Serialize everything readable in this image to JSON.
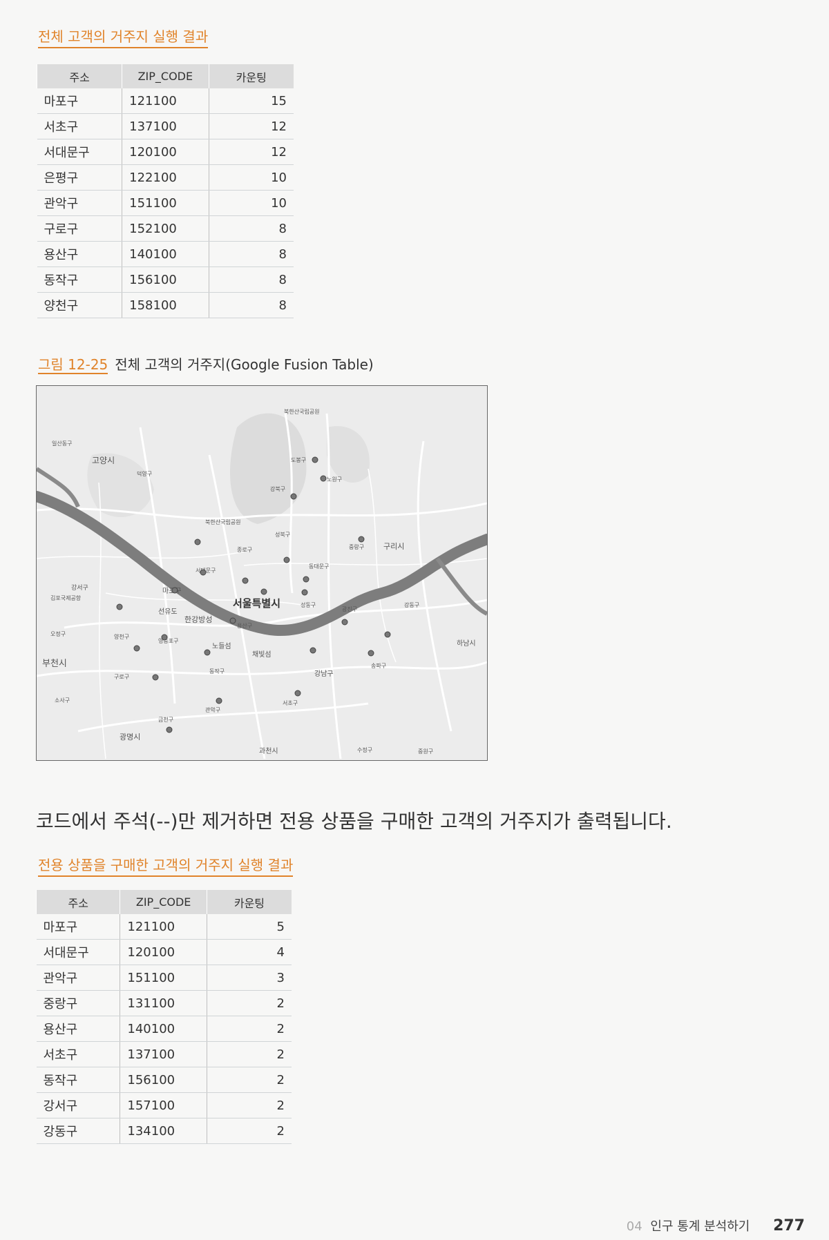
{
  "table1": {
    "title": "전체 고객의 거주지 실행 결과",
    "headers": [
      "주소",
      "ZIP_CODE",
      "카운팅"
    ],
    "rows": [
      [
        "마포구",
        "121100",
        "15"
      ],
      [
        "서초구",
        "137100",
        "12"
      ],
      [
        "서대문구",
        "120100",
        "12"
      ],
      [
        "은평구",
        "122100",
        "10"
      ],
      [
        "관악구",
        "151100",
        "10"
      ],
      [
        "구로구",
        "152100",
        "8"
      ],
      [
        "용산구",
        "140100",
        "8"
      ],
      [
        "동작구",
        "156100",
        "8"
      ],
      [
        "양천구",
        "158100",
        "8"
      ]
    ]
  },
  "figure": {
    "number": "그림 12-25",
    "caption": "전체 고객의 거주지(Google Fusion Table)",
    "map_labels": [
      "북한산국립공원",
      "일산동구",
      "고양시",
      "덕양구",
      "도봉구",
      "노원구",
      "강북구",
      "북한산국립공원",
      "성북구",
      "종로구",
      "중랑구",
      "구리시",
      "동대문구",
      "서대문구",
      "강서구",
      "김포국제공항",
      "마포구",
      "서울특별시",
      "성동구",
      "광진구",
      "강동구",
      "선유도",
      "한강방성",
      "용산구",
      "오정구",
      "양천구",
      "영등포구",
      "노들섬",
      "채빛섬",
      "하남시",
      "부천시",
      "동작구",
      "송파구",
      "구로구",
      "강남구",
      "소사구",
      "서초구",
      "관악구",
      "금천구",
      "광명시",
      "과천시",
      "수정구",
      "중원구"
    ]
  },
  "body_text": "코드에서 주석(--)만 제거하면 전용 상품을 구매한 고객의 거주지가 출력됩니다.",
  "table2": {
    "title": "전용 상품을 구매한 고객의 거주지 실행 결과",
    "headers": [
      "주소",
      "ZIP_CODE",
      "카운팅"
    ],
    "rows": [
      [
        "마포구",
        "121100",
        "5"
      ],
      [
        "서대문구",
        "120100",
        "4"
      ],
      [
        "관악구",
        "151100",
        "3"
      ],
      [
        "중랑구",
        "131100",
        "2"
      ],
      [
        "용산구",
        "140100",
        "2"
      ],
      [
        "서초구",
        "137100",
        "2"
      ],
      [
        "동작구",
        "156100",
        "2"
      ],
      [
        "강서구",
        "157100",
        "2"
      ],
      [
        "강동구",
        "134100",
        "2"
      ]
    ]
  },
  "footer": {
    "chapter": "04",
    "chapter_name": "인구 통계 분석하기",
    "page": "277"
  },
  "colors": {
    "accent": "#e0832a",
    "river": "#7d7d7d",
    "marker": "#777777"
  }
}
